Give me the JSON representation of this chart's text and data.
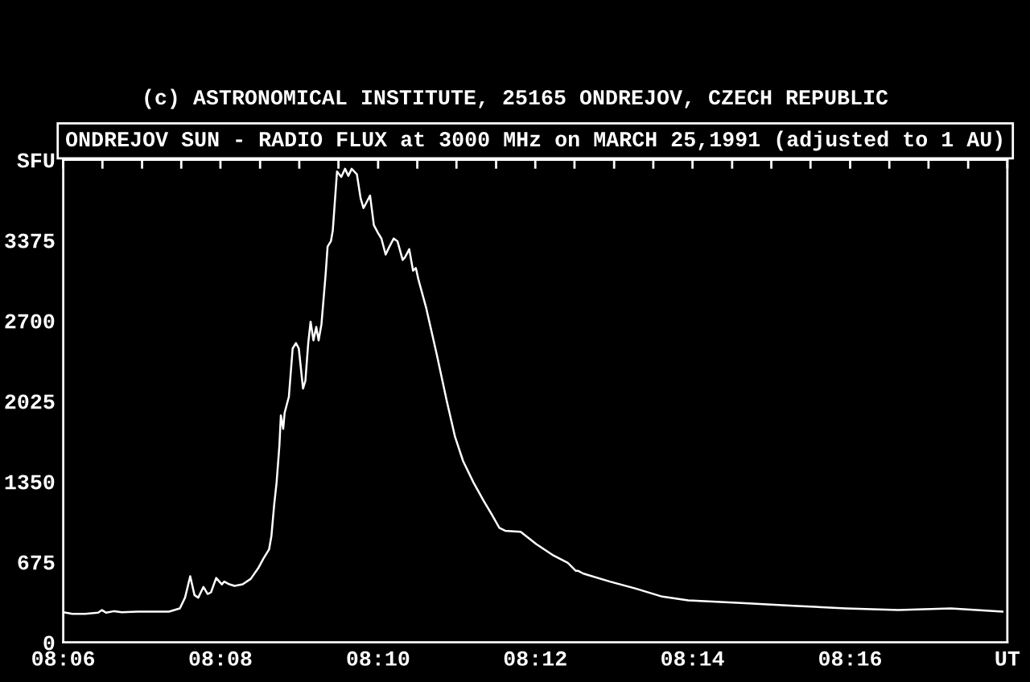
{
  "chart_data": {
    "type": "line",
    "title": "ONDREJOV SUN - RADIO FLUX at 3000 MHz on MARCH 25,1991 (adjusted to 1 AU)",
    "annotations": [
      "(c) ASTRONOMICAL INSTITUTE, 25165 ONDREJOV, CZECH REPUBLIC"
    ],
    "series": [
      {
        "color": "#ffffff",
        "x": [
          8.1,
          8.1019,
          8.1047,
          8.1074,
          8.1082,
          8.1091,
          8.1108,
          8.1124,
          8.1158,
          8.1224,
          8.1247,
          8.1258,
          8.1269,
          8.1278,
          8.1286,
          8.1297,
          8.1306,
          8.1313,
          8.1324,
          8.1336,
          8.1341,
          8.1352,
          8.1363,
          8.138,
          8.1397,
          8.1413,
          8.1424,
          8.1436,
          8.1441,
          8.1447,
          8.1452,
          8.1458,
          8.1461,
          8.1466,
          8.1469,
          8.1478,
          8.1486,
          8.1493,
          8.1499,
          8.1508,
          8.1513,
          8.1519,
          8.1524,
          8.153,
          8.1536,
          8.1541,
          8.1547,
          8.1556,
          8.156,
          8.1567,
          8.1571,
          8.158,
          8.1589,
          8.1597,
          8.1604,
          8.1611,
          8.1622,
          8.163,
          8.1636,
          8.1641,
          8.165,
          8.1658,
          8.1667,
          8.1674,
          8.1683,
          8.1691,
          8.17,
          8.1708,
          8.1719,
          8.1724,
          8.1733,
          8.1741,
          8.1747,
          8.1752,
          8.1769,
          8.1791,
          8.1813,
          8.183,
          8.1847,
          8.1869,
          8.1891,
          8.1908,
          8.1924,
          8.1936,
          8.1969,
          8.2002,
          8.2036,
          8.2069,
          8.2086,
          8.2091,
          8.2102,
          8.2158,
          8.2213,
          8.2269,
          8.2324,
          8.2436,
          8.2547,
          8.2658,
          8.2769,
          8.288,
          8.299
        ],
        "values": [
          252,
          239,
          239,
          248,
          270,
          248,
          261,
          252,
          257,
          257,
          284,
          374,
          554,
          396,
          374,
          464,
          405,
          419,
          540,
          486,
          509,
          486,
          473,
          486,
          531,
          621,
          702,
          779,
          891,
          1161,
          1341,
          1656,
          1904,
          1791,
          1926,
          2061,
          2466,
          2511,
          2466,
          2129,
          2196,
          2511,
          2691,
          2534,
          2646,
          2534,
          2669,
          3096,
          3321,
          3366,
          3456,
          3951,
          3906,
          3974,
          3915,
          3974,
          3929,
          3726,
          3645,
          3681,
          3749,
          3501,
          3434,
          3389,
          3254,
          3321,
          3389,
          3366,
          3209,
          3231,
          3299,
          3119,
          3141,
          3051,
          2804,
          2421,
          2016,
          1724,
          1521,
          1341,
          1184,
          1071,
          959,
          936,
          927,
          824,
          734,
          666,
          599,
          599,
          576,
          509,
          450,
          383,
          351,
          329,
          306,
          284,
          270,
          284,
          257
        ]
      }
    ],
    "xlim": [
      8.1,
      8.3
    ],
    "xticks": [
      {
        "value": 8.1,
        "label": "08:06"
      },
      {
        "value": 8.1083,
        "label": null
      },
      {
        "value": 8.1167,
        "label": null
      },
      {
        "value": 8.125,
        "label": null
      },
      {
        "value": 8.1333,
        "label": "08:08"
      },
      {
        "value": 8.1417,
        "label": null
      },
      {
        "value": 8.15,
        "label": null
      },
      {
        "value": 8.1583,
        "label": null
      },
      {
        "value": 8.1667,
        "label": "08:10"
      },
      {
        "value": 8.175,
        "label": null
      },
      {
        "value": 8.1833,
        "label": null
      },
      {
        "value": 8.1917,
        "label": null
      },
      {
        "value": 8.2,
        "label": "08:12"
      },
      {
        "value": 8.2083,
        "label": null
      },
      {
        "value": 8.2167,
        "label": null
      },
      {
        "value": 8.225,
        "label": null
      },
      {
        "value": 8.2333,
        "label": "08:14"
      },
      {
        "value": 8.2417,
        "label": null
      },
      {
        "value": 8.25,
        "label": null
      },
      {
        "value": 8.2583,
        "label": null
      },
      {
        "value": 8.2667,
        "label": "08:16"
      },
      {
        "value": 8.275,
        "label": null
      },
      {
        "value": 8.2833,
        "label": null
      },
      {
        "value": 8.2917,
        "label": null
      },
      {
        "value": 8.3,
        "label": "UT"
      }
    ],
    "ylim": [
      0,
      4050
    ],
    "yticks": [
      0,
      675,
      1350,
      2025,
      2700,
      3375,
      {
        "value": 4050,
        "label": "SFU"
      }
    ],
    "grid": false,
    "legend": false,
    "marker": "none",
    "line_style": "solid"
  }
}
